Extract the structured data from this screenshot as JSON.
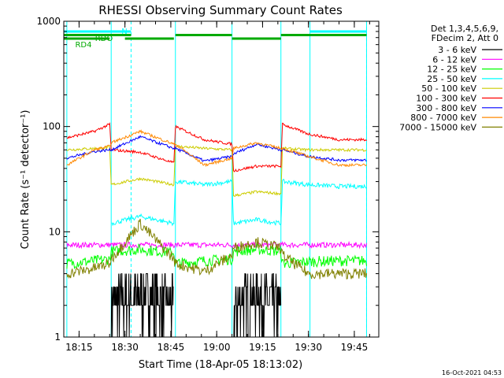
{
  "chart_data": {
    "type": "line",
    "title": "RHESSI Observing Summary Count Rates",
    "xlabel": "Start Time (18-Apr-05 18:13:02)",
    "ylabel": "Count Rate (s⁻¹ detector⁻¹)",
    "y_scale": "log",
    "ylim": [
      1,
      1000
    ],
    "xlim": [
      "18:10:00",
      "19:53:00"
    ],
    "x_ticks": [
      "18:15",
      "18:30",
      "18:45",
      "19:00",
      "19:15",
      "19:30",
      "19:45"
    ],
    "y_ticks": [
      "1",
      "10",
      "100",
      "1000"
    ],
    "legend_header": [
      "Det 1,3,4,5,6,9,",
      "FDecim 2, Att 0"
    ],
    "legend_position": "right",
    "timestamp": "16-Oct-2021 04:53",
    "flags": [
      {
        "name": "N",
        "color": "#00ffff",
        "intervals": [
          [
            "18:10:00",
            "18:32:00"
          ],
          [
            "19:30:30",
            "19:49:00"
          ]
        ]
      },
      {
        "name": "RDO",
        "color": "#00aa00",
        "intervals": [
          [
            "18:10:00",
            "18:32:00"
          ],
          [
            "18:46:30",
            "19:05:00"
          ],
          [
            "19:21:00",
            "19:49:00"
          ]
        ]
      },
      {
        "name": "RD4",
        "color": "#00aa00",
        "intervals": [
          [
            "18:10:00",
            "18:25:00"
          ],
          [
            "18:30:00",
            "18:46:00"
          ],
          [
            "19:05:00",
            "19:21:00"
          ]
        ]
      }
    ],
    "vertical_lines": {
      "solid": [
        "18:11:00",
        "18:25:30",
        "18:46:30",
        "19:05:00",
        "19:21:00",
        "19:30:30",
        "19:49:00"
      ],
      "dashed": [
        "18:32:00",
        "19:49:00"
      ]
    },
    "time_nodes": [
      "18:11",
      "18:20",
      "18:25",
      "18:25.5",
      "18:35",
      "18:46",
      "18:46.5",
      "18:56",
      "19:05",
      "19:05.5",
      "19:13",
      "19:21",
      "19:21.5",
      "19:30",
      "19:40",
      "19:49"
    ],
    "series": [
      {
        "name": "3 - 6 keV",
        "color": "#000000",
        "noise": 0.6,
        "values": [
          null,
          null,
          null,
          2,
          2.5,
          2,
          null,
          null,
          null,
          2,
          2.5,
          2,
          null,
          null,
          null,
          null
        ]
      },
      {
        "name": "6 - 12 keV",
        "color": "#ff00ff",
        "noise": 0.06,
        "values": [
          7.5,
          7.5,
          7.5,
          7.5,
          7.5,
          7.5,
          7.5,
          7.5,
          7.5,
          7.5,
          7.5,
          7.5,
          7.5,
          7.5,
          7.5,
          7.5
        ]
      },
      {
        "name": "12 - 25 keV",
        "color": "#00ff00",
        "noise": 0.12,
        "values": [
          5,
          5.3,
          5.5,
          6.5,
          6.8,
          6.3,
          5,
          5.3,
          5.5,
          6.5,
          6.8,
          6.5,
          5,
          5.2,
          5.3,
          5.3
        ]
      },
      {
        "name": "25 - 50 keV",
        "color": "#00ffff",
        "noise": 0.05,
        "values": [
          null,
          null,
          null,
          12,
          14,
          12,
          30,
          28,
          30,
          12,
          13,
          12,
          30,
          28,
          27,
          27
        ]
      },
      {
        "name": "50 - 100 keV",
        "color": "#cccc00",
        "noise": 0.03,
        "values": [
          60,
          62,
          63,
          28,
          32,
          28,
          65,
          62,
          60,
          22,
          24,
          23,
          62,
          60,
          60,
          60
        ]
      },
      {
        "name": "100 - 300 keV",
        "color": "#ff0000",
        "noise": 0.03,
        "values": [
          78,
          90,
          105,
          60,
          57,
          45,
          100,
          75,
          68,
          38,
          42,
          42,
          105,
          85,
          75,
          75
        ]
      },
      {
        "name": "300 - 800 keV",
        "color": "#0000ff",
        "noise": 0.03,
        "values": [
          50,
          58,
          60,
          60,
          80,
          62,
          62,
          47,
          52,
          55,
          68,
          60,
          60,
          52,
          48,
          48
        ]
      },
      {
        "name": "800 - 7000 keV",
        "color": "#ff8800",
        "noise": 0.03,
        "values": [
          43,
          60,
          65,
          70,
          90,
          68,
          68,
          43,
          50,
          62,
          70,
          62,
          62,
          52,
          43,
          43
        ]
      },
      {
        "name": "7000 - 15000 keV",
        "color": "#808000",
        "noise": 0.12,
        "values": [
          4,
          4.5,
          5,
          5.5,
          12,
          5.5,
          5,
          4.2,
          6,
          7,
          8,
          7,
          6,
          4,
          4,
          4
        ]
      }
    ]
  }
}
